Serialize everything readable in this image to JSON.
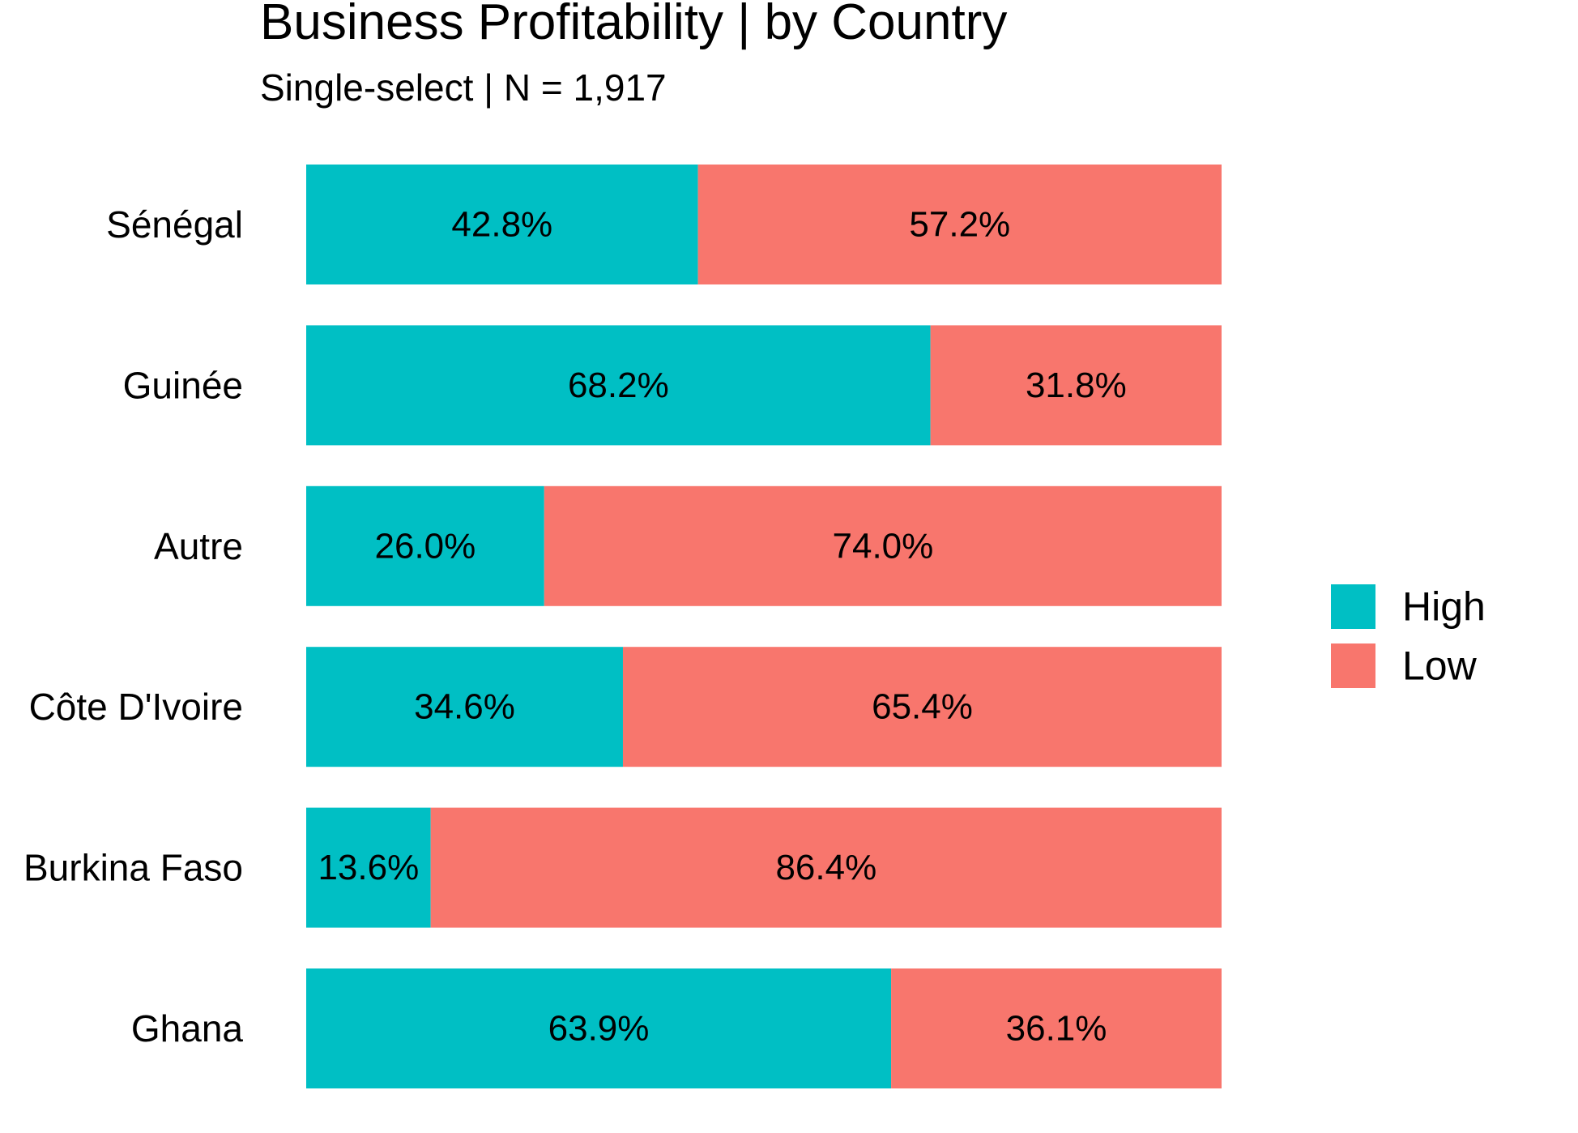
{
  "chart_data": {
    "type": "bar",
    "orientation": "horizontal",
    "stacked": true,
    "title": "Business Profitability | by Country",
    "subtitle": "Single-select | N = 1,917",
    "categories": [
      "Sénégal",
      "Guinée",
      "Autre",
      "Côte D'Ivoire",
      "Burkina Faso",
      "Ghana"
    ],
    "series": [
      {
        "name": "High",
        "color": "#00BFC4",
        "values": [
          42.8,
          68.2,
          26.0,
          34.6,
          13.6,
          63.9
        ],
        "labels": [
          "42.8%",
          "68.2%",
          "26.0%",
          "34.6%",
          "13.6%",
          "63.9%"
        ]
      },
      {
        "name": "Low",
        "color": "#F8766D",
        "values": [
          57.2,
          31.8,
          74.0,
          65.4,
          86.4,
          36.1
        ],
        "labels": [
          "57.2%",
          "31.8%",
          "74.0%",
          "65.4%",
          "86.4%",
          "36.1%"
        ]
      }
    ],
    "xlim": [
      0,
      100
    ],
    "grid": false,
    "axis_lines": false,
    "legend_position": "right"
  }
}
